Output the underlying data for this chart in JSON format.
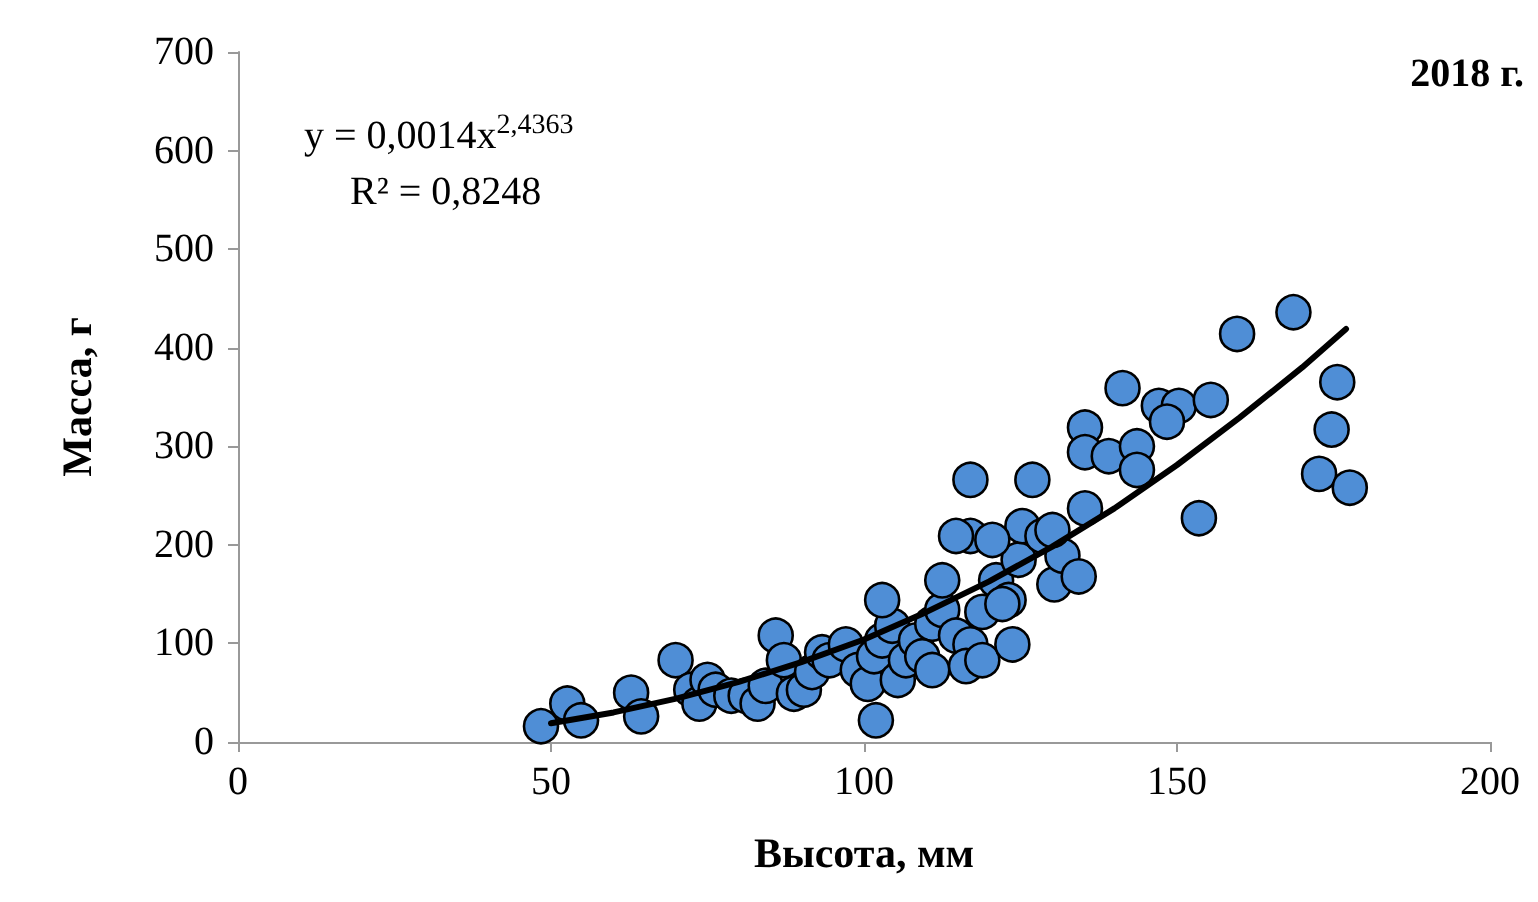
{
  "chart_data": {
    "type": "scatter",
    "title": "2018 г.",
    "xlabel": "Высота, мм",
    "ylabel": "Масса, г",
    "annotations": [
      "y = 0,0014x$^{2,4363}$",
      "R² = 0,8248"
    ],
    "xlim": [
      0,
      200
    ],
    "xticks": [
      0,
      50,
      100,
      150,
      200
    ],
    "ylim": [
      0,
      700
    ],
    "yticks": [
      0,
      100,
      200,
      300,
      400,
      500,
      600,
      700
    ],
    "grid": false,
    "marker": "circle",
    "series": [
      {
        "color": "#4f8ed6",
        "x": [
          48.4,
          52.6,
          54.8,
          62.8,
          64.4,
          69.9,
          72.4,
          73.7,
          75,
          76.3,
          78.8,
          81.1,
          83,
          84.3,
          85.9,
          87.2,
          88.8,
          90.4,
          91.7,
          93.3,
          94.5,
          97.1,
          99,
          100.6,
          101.6,
          102.9,
          104.5,
          102.9,
          101.9,
          105.4,
          106.7,
          108.3,
          110.9,
          112.5,
          114.7,
          117,
          118.9,
          121.1,
          123.1,
          124.7,
          125.3,
          126.9,
          112.5,
          109.3,
          110.9,
          116.3,
          118.9,
          122.1,
          123.7,
          128.5,
          130.4,
          131.7,
          134.3,
          117,
          117,
          114.7,
          120.5,
          141.3,
          147.1,
          150.3,
          148.4,
          155.4,
          135.3,
          135.3,
          139.1,
          143.6,
          143.6,
          135.3,
          130.1,
          153.5,
          175.6,
          174.7,
          172.7,
          177.6,
          159.6,
          168.6
        ],
        "values": [
          16,
          39,
          22,
          50,
          26,
          83,
          53,
          39,
          63,
          53,
          47,
          47,
          39,
          57,
          108,
          83,
          49,
          53,
          71,
          91,
          83,
          99,
          73,
          59,
          87,
          103,
          118,
          144,
          22,
          63,
          83,
          103,
          120,
          134,
          108,
          99,
          132,
          164,
          144,
          185,
          219,
          266,
          164,
          87,
          73,
          77,
          83,
          140,
          99,
          209,
          160,
          189,
          168,
          266,
          209,
          209,
          205,
          359,
          341,
          341,
          325,
          347,
          319,
          294,
          290,
          300,
          276,
          237,
          215,
          227,
          365,
          317,
          272,
          258,
          414,
          436
        ]
      },
      {
        "type": "line",
        "color": "#000000",
        "marker": "none",
        "line_style": "solid",
        "x": [
          50,
          60,
          70,
          80,
          90,
          100,
          110,
          120,
          130,
          140,
          150,
          160,
          170,
          177
        ],
        "values": [
          19,
          30,
          44,
          61,
          81,
          104,
          132,
          163,
          198,
          237,
          281,
          329,
          380,
          419
        ]
      }
    ]
  }
}
